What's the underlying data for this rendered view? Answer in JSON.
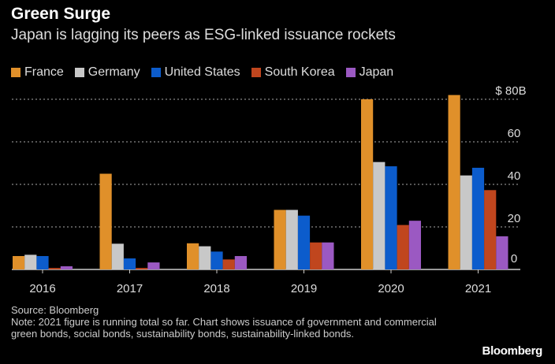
{
  "header": {
    "title": "Green Surge",
    "subtitle": "Japan is lagging its peers as ESG-linked issuance rockets"
  },
  "chart_data": {
    "type": "bar",
    "title": "Green Surge",
    "subtitle": "Japan is lagging its peers as ESG-linked issuance rockets",
    "categories": [
      "2016",
      "2017",
      "2018",
      "2019",
      "2020",
      "2021"
    ],
    "series": [
      {
        "name": "France",
        "color": "#e0902a",
        "values": [
          6.3,
          45,
          12.3,
          28,
          80,
          82
        ]
      },
      {
        "name": "Germany",
        "color": "#c8c8c8",
        "values": [
          6.9,
          12.1,
          10.9,
          28,
          50.5,
          44.2
        ]
      },
      {
        "name": "United States",
        "color": "#0c5ccc",
        "values": [
          6.3,
          5.2,
          8.4,
          25.3,
          48.5,
          47.8
        ]
      },
      {
        "name": "South Korea",
        "color": "#c0461e",
        "values": [
          0.7,
          0.7,
          4.7,
          12.7,
          20.9,
          37.3
        ]
      },
      {
        "name": "Japan",
        "color": "#9b59c2",
        "values": [
          1.5,
          3.3,
          6.3,
          12.7,
          22.9,
          15.6
        ]
      }
    ],
    "yticks": [
      "0",
      "20",
      "40",
      "60",
      "$ 80B"
    ],
    "ytick_values": [
      0,
      20,
      40,
      60,
      80
    ],
    "ylim": [
      0,
      80
    ],
    "grid": true,
    "legend": "top-left",
    "xlabel": "",
    "ylabel": ""
  },
  "footer": {
    "source": "Source: Bloomberg",
    "note": "Note: 2021 figure is running total so far. Chart shows issuance of government and commercial green bonds, social bonds, sustainability bonds, sustainability-linked bonds."
  },
  "brand": "Bloomberg"
}
